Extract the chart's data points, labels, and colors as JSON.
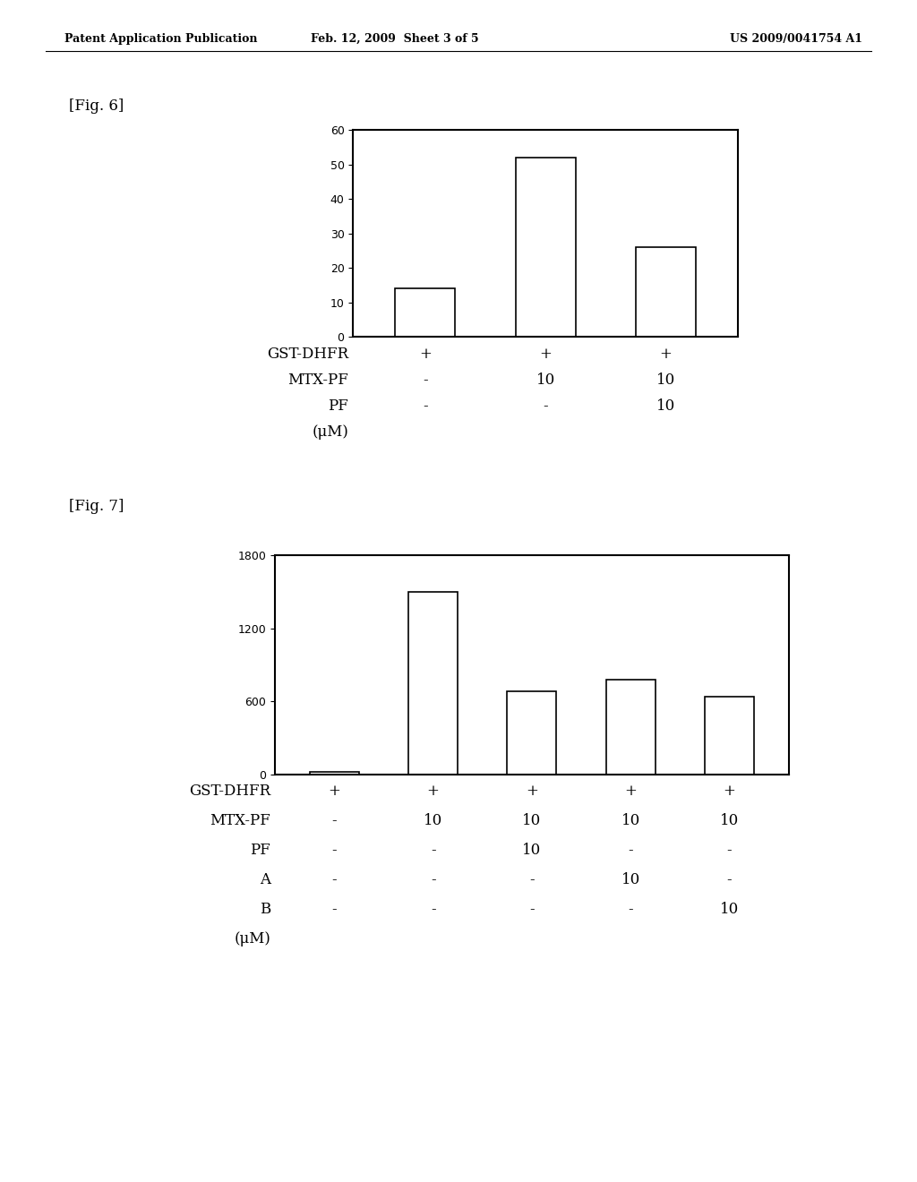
{
  "header_left": "Patent Application Publication",
  "header_center": "Feb. 12, 2009  Sheet 3 of 5",
  "header_right": "US 2009/0041754 A1",
  "fig6_label": "[Fig. 6]",
  "fig7_label": "[Fig. 7]",
  "fig6": {
    "values": [
      14,
      52,
      26
    ],
    "ylim": [
      0,
      60
    ],
    "yticks": [
      0,
      10,
      20,
      30,
      40,
      50,
      60
    ],
    "bar_positions": [
      1,
      2,
      3
    ],
    "bar_width": 0.5,
    "xlim": [
      0.4,
      3.6
    ],
    "table_rows": [
      {
        "label": "GST-DHFR",
        "values": [
          "+",
          "+",
          "+"
        ]
      },
      {
        "label": "MTX-PF",
        "values": [
          "-",
          "10",
          "10"
        ]
      },
      {
        "label": "PF",
        "values": [
          "-",
          "-",
          "10"
        ]
      },
      {
        "label": "(μM)",
        "values": [
          "",
          "",
          ""
        ]
      }
    ]
  },
  "fig7": {
    "values": [
      20,
      1500,
      680,
      780,
      640
    ],
    "ylim": [
      0,
      1800
    ],
    "yticks": [
      0,
      600,
      1200,
      1800
    ],
    "bar_positions": [
      1,
      2,
      3,
      4,
      5
    ],
    "bar_width": 0.5,
    "xlim": [
      0.4,
      5.6
    ],
    "table_rows": [
      {
        "label": "GST-DHFR",
        "values": [
          "+",
          "+",
          "+",
          "+",
          "+"
        ]
      },
      {
        "label": "MTX-PF",
        "values": [
          "-",
          "10",
          "10",
          "10",
          "10"
        ]
      },
      {
        "label": "PF",
        "values": [
          "-",
          "-",
          "10",
          "-",
          "-"
        ]
      },
      {
        "label": "A",
        "values": [
          "-",
          "-",
          "-",
          "10",
          "-"
        ]
      },
      {
        "label": "B",
        "values": [
          "-",
          "-",
          "-",
          "-",
          "10"
        ]
      },
      {
        "label": "(μM)",
        "values": [
          "",
          "",
          "",
          "",
          ""
        ]
      }
    ]
  },
  "bg_color": "#ffffff",
  "bar_facecolor": "#ffffff",
  "bar_edgecolor": "#000000",
  "bar_linewidth": 1.2,
  "axis_linewidth": 1.5,
  "tick_fontsize": 9,
  "table_fontsize": 12,
  "header_fontsize": 9,
  "fig_label_fontsize": 12
}
